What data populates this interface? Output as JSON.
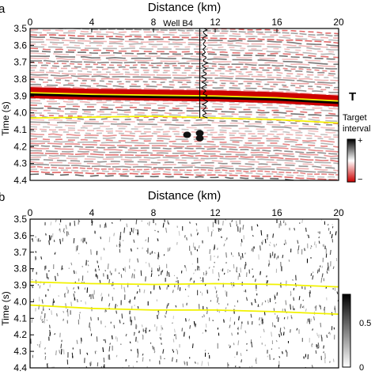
{
  "chart_data": [
    {
      "type": "heatmap",
      "panel_label": "a",
      "title": "Distance (km)",
      "xlabel": "Distance (km)",
      "ylabel": "Time (s)",
      "xlim": [
        0,
        20
      ],
      "ylim": [
        3.5,
        4.4
      ],
      "x_ticks": [
        "0",
        "4",
        "8",
        "12",
        "16",
        "20"
      ],
      "y_ticks": [
        "3.5",
        "3.6",
        "3.7",
        "3.8",
        "3.9",
        "4.0",
        "4.1",
        "4.2",
        "4.3",
        "4.4"
      ],
      "colormap": [
        "#cc0000",
        "#ffffff",
        "#000000"
      ],
      "colorbar_labels": [
        "+",
        "−"
      ],
      "well": {
        "name": "Well B4",
        "x": 11.0,
        "t_top": 3.5,
        "t_bottom": 4.03
      },
      "horizons": [
        {
          "name": "T",
          "color": "#f2f200",
          "x": [
            0,
            4,
            8,
            12,
            16,
            20
          ],
          "t": [
            3.88,
            3.89,
            3.895,
            3.9,
            3.91,
            3.93
          ]
        },
        {
          "name": "",
          "color": "#f2f200",
          "x": [
            0,
            4,
            8,
            12,
            16,
            20
          ],
          "t": [
            4.03,
            4.025,
            4.02,
            4.03,
            4.04,
            4.06
          ]
        }
      ],
      "annotations": [
        "T",
        "Target",
        "interval"
      ]
    },
    {
      "type": "heatmap",
      "panel_label": "b",
      "title": "Distance (km)",
      "xlabel": "Distance (km)",
      "ylabel": "Time (s)",
      "xlim": [
        0,
        20
      ],
      "ylim": [
        3.5,
        4.4
      ],
      "x_ticks": [
        "0",
        "4",
        "8",
        "12",
        "16",
        "20"
      ],
      "y_ticks": [
        "3.5",
        "3.6",
        "3.7",
        "3.8",
        "3.9",
        "4.0",
        "4.1",
        "4.2",
        "4.3",
        "4.4"
      ],
      "colormap": [
        "#ffffff",
        "#000000"
      ],
      "colorbar_range": [
        0,
        0.5
      ],
      "colorbar_labels": [
        "0.5",
        "0"
      ],
      "horizons": [
        {
          "name": "",
          "color": "#f2f200",
          "x": [
            0,
            4,
            8,
            12,
            16,
            20
          ],
          "t": [
            3.88,
            3.89,
            3.895,
            3.89,
            3.895,
            3.91
          ]
        },
        {
          "name": "",
          "color": "#f2f200",
          "x": [
            0,
            4,
            8,
            12,
            16,
            20
          ],
          "t": [
            4.02,
            4.04,
            4.05,
            4.05,
            4.06,
            4.075
          ]
        }
      ]
    }
  ]
}
